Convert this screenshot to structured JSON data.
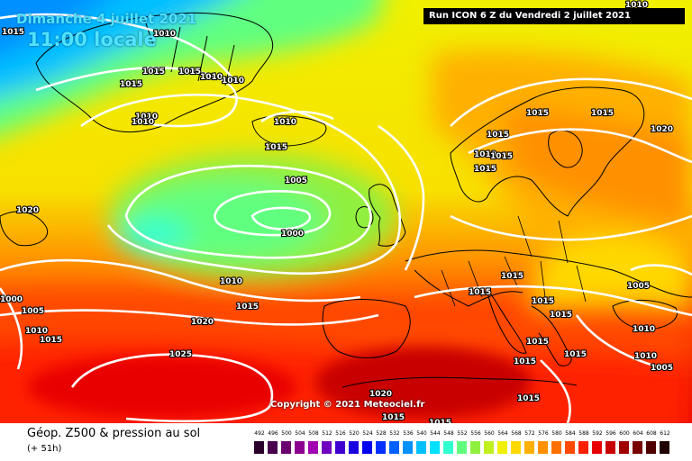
{
  "header": {
    "date": "Dimanche 4 juillet 2021",
    "time": "11:00 locale",
    "run": "Run ICON 6 Z du Vendredi 2 juillet 2021",
    "corner_label": "1010"
  },
  "copyright": "Copyright © 2021 Meteociel.fr",
  "footer": {
    "title": "Géop. Z500 & pression au sol",
    "subtitle": "(+ 51h)"
  },
  "legend": {
    "labels": [
      "492",
      "496",
      "500",
      "504",
      "508",
      "512",
      "516",
      "520",
      "524",
      "528",
      "532",
      "536",
      "540",
      "544",
      "548",
      "552",
      "556",
      "560",
      "564",
      "568",
      "572",
      "576",
      "580",
      "584",
      "588",
      "592",
      "596",
      "600",
      "604",
      "608",
      "612"
    ],
    "colors": [
      "#2a002a",
      "#48004c",
      "#6a006e",
      "#8c0090",
      "#a000b0",
      "#7000c0",
      "#4000d0",
      "#1800e0",
      "#0000f0",
      "#0030ff",
      "#0060ff",
      "#0090ff",
      "#00c0ff",
      "#00e0ff",
      "#30ffd0",
      "#60ff80",
      "#90f040",
      "#c0f020",
      "#f0f000",
      "#ffd800",
      "#ffb000",
      "#ff9000",
      "#ff7000",
      "#ff4800",
      "#ff2000",
      "#e80000",
      "#c80000",
      "#a00000",
      "#780000",
      "#500000",
      "#200000"
    ]
  },
  "pressure_labels": [
    "1015",
    "1010",
    "1015",
    "1015",
    "1010",
    "1010",
    "1015",
    "1010",
    "1010",
    "1010",
    "1015",
    "1020",
    "1005",
    "1000",
    "1000",
    "1005",
    "1010",
    "1015",
    "1010",
    "1015",
    "1020",
    "1025",
    "1015",
    "1015",
    "1015",
    "1010",
    "1015",
    "1015",
    "1020",
    "1015",
    "1015",
    "1015",
    "1015",
    "1015",
    "1015",
    "1005",
    "1010",
    "1015",
    "1010",
    "1005",
    "1020",
    "1015",
    "1015",
    "1015"
  ]
}
